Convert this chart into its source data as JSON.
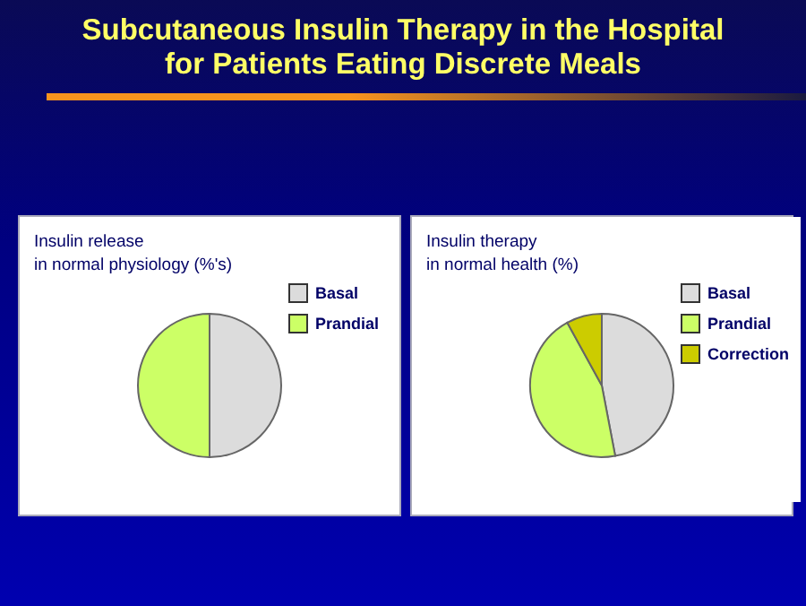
{
  "chart_data": [
    {
      "type": "pie",
      "title": "Insulin release\n in  normal physiology (%'s)",
      "annotations": [
        "Subcutaneous Insulin Therapy in the Hospital\nfor Patients Eating Discrete Meals"
      ],
      "categories": [
        "Basal",
        "Prandial"
      ],
      "values": [
        50,
        50
      ],
      "colors": [
        "#dcdcdc",
        "#ccff66"
      ],
      "legend": "top right"
    },
    {
      "type": "pie",
      "title": "Insulin therapy\n in  normal health (%)",
      "categories": [
        "Basal",
        "Prandial",
        "Correction"
      ],
      "values": [
        47,
        45,
        8
      ],
      "colors": [
        "#dcdcdc",
        "#ccff66",
        "#cccc00"
      ],
      "legend": "top right"
    }
  ]
}
